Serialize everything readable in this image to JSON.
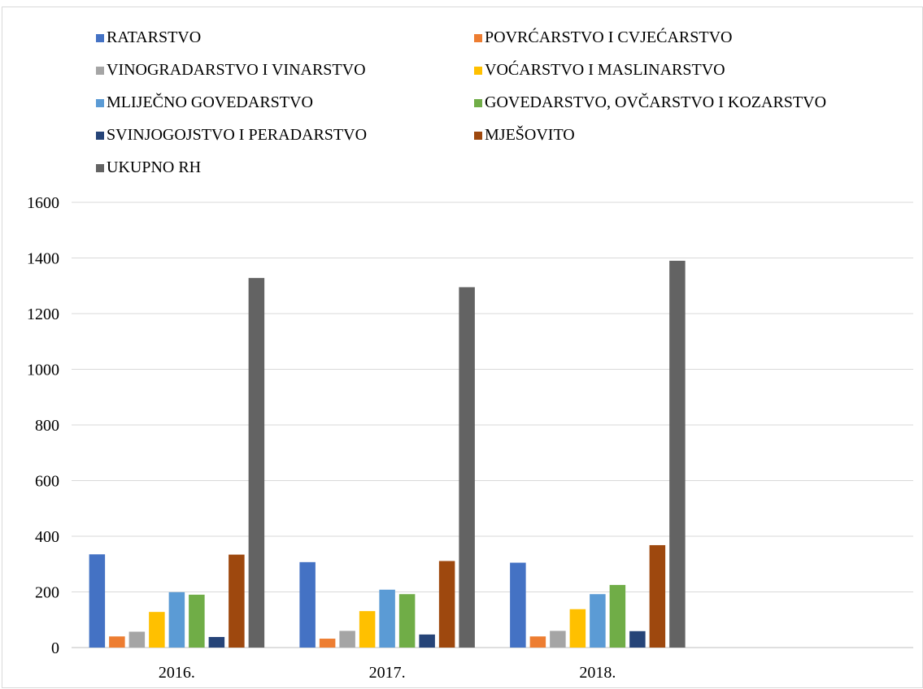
{
  "chart_data": {
    "type": "bar",
    "title": "",
    "xlabel": "",
    "ylabel": "",
    "categories": [
      "2016.",
      "2017.",
      "2018."
    ],
    "ylim": [
      0,
      1600
    ],
    "yticks": [
      0,
      200,
      400,
      600,
      800,
      1000,
      1200,
      1400,
      1600
    ],
    "grid": true,
    "legend_position": "top",
    "series": [
      {
        "name": "RATARSTVO",
        "color": "#4472c4",
        "values": [
          335,
          307,
          305
        ]
      },
      {
        "name": "POVRĆARSTVO I CVJEĆARSTVO",
        "color": "#ed7d31",
        "values": [
          40,
          32,
          40
        ]
      },
      {
        "name": "VINOGRADARSTVO I VINARSTVO",
        "color": "#a5a5a5",
        "values": [
          57,
          60,
          60
        ]
      },
      {
        "name": "VOĆARSTVO I MASLINARSTVO",
        "color": "#ffc000",
        "values": [
          128,
          131,
          138
        ]
      },
      {
        "name": "MLIJEČNO GOVEDARSTVO",
        "color": "#5b9bd5",
        "values": [
          199,
          208,
          192
        ]
      },
      {
        "name": "GOVEDARSTVO, OVČARSTVO I KOZARSTVO",
        "color": "#70ad47",
        "values": [
          190,
          192,
          225
        ]
      },
      {
        "name": "SVINJOGOJSTVO I PERADARSTVO",
        "color": "#264478",
        "values": [
          38,
          47,
          59
        ]
      },
      {
        "name": "MJEŠOVITO",
        "color": "#9e480e",
        "values": [
          334,
          311,
          368
        ]
      },
      {
        "name": "UKUPNO RH",
        "color": "#636363",
        "values": [
          1328,
          1295,
          1390
        ]
      }
    ]
  }
}
